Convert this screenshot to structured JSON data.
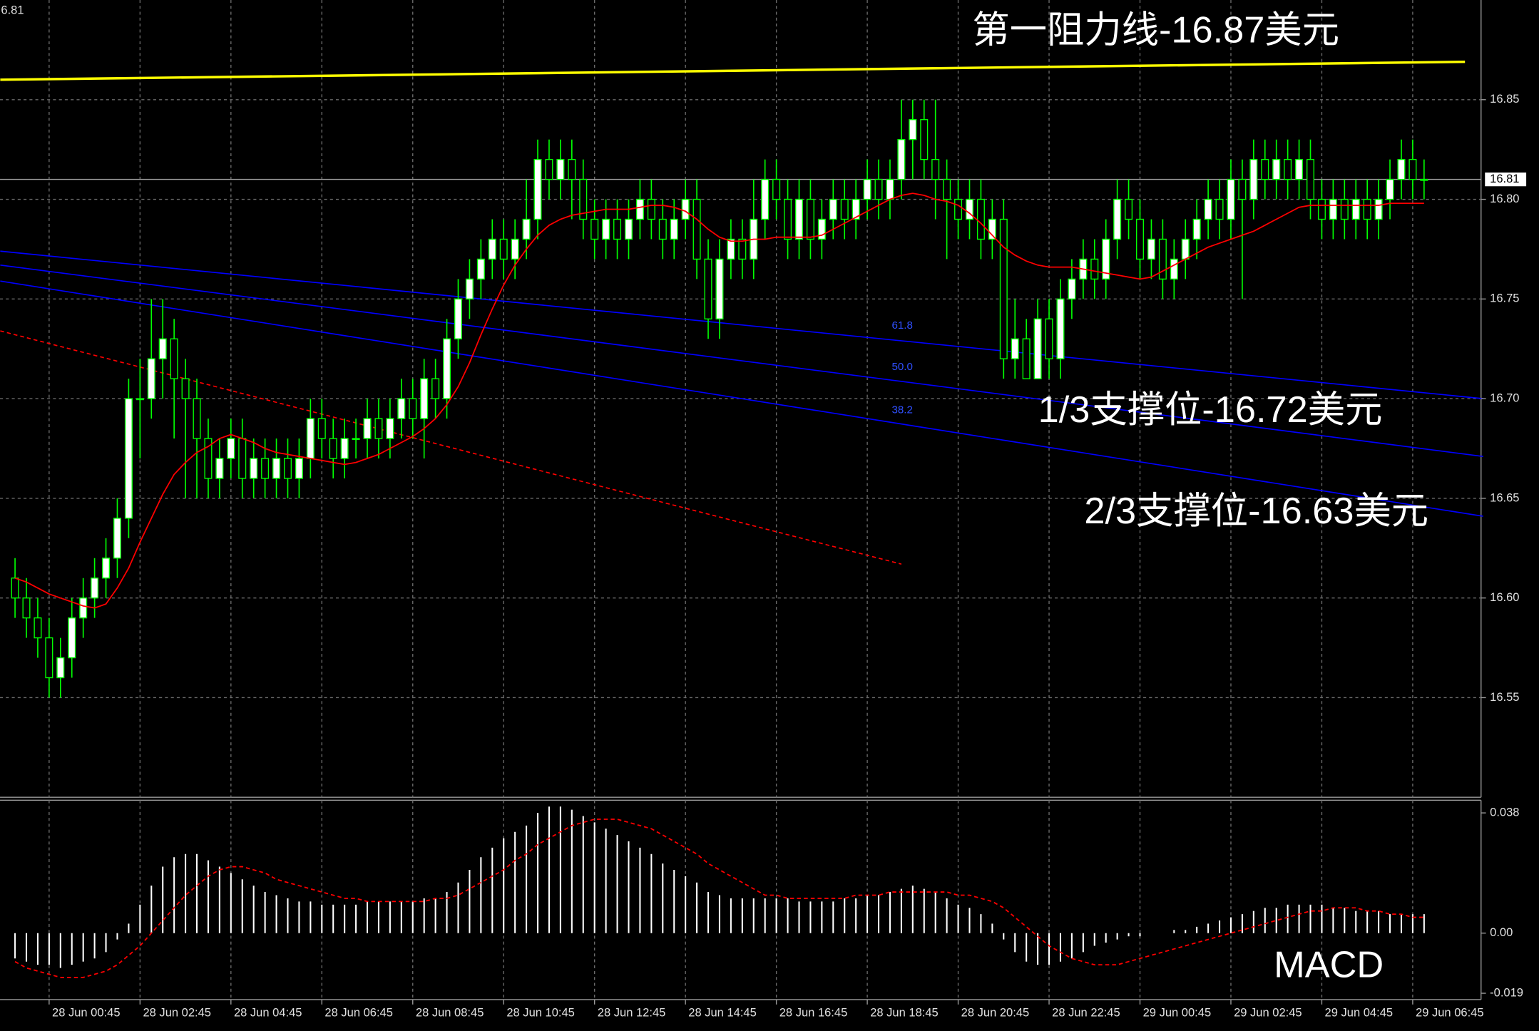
{
  "chart_data": {
    "type": "candlestick",
    "header": "6.81",
    "categories": [
      null,
      null,
      null,
      "28 Jun 00:45",
      null,
      null,
      null,
      null,
      null,
      null,
      null,
      "28 Jun 02:45",
      null,
      null,
      null,
      null,
      null,
      null,
      null,
      "28 Jun 04:45",
      null,
      null,
      null,
      null,
      null,
      null,
      null,
      "28 Jun 06:45",
      null,
      null,
      null,
      null,
      null,
      null,
      null,
      "28 Jun 08:45",
      null,
      null,
      null,
      null,
      null,
      null,
      null,
      "28 Jun 10:45",
      null,
      null,
      null,
      null,
      null,
      null,
      null,
      "28 Jun 12:45",
      null,
      null,
      null,
      null,
      null,
      null,
      null,
      "28 Jun 14:45",
      null,
      null,
      null,
      null,
      null,
      null,
      null,
      "28 Jun 16:45",
      null,
      null,
      null,
      null,
      null,
      null,
      null,
      "28 Jun 18:45",
      null,
      null,
      null,
      null,
      null,
      null,
      null,
      "28 Jun 20:45",
      null,
      null,
      null,
      null,
      null,
      null,
      null,
      "28 Jun 22:45",
      null,
      null,
      null,
      null,
      null,
      null,
      null,
      "29 Jun 00:45",
      null,
      null,
      null,
      null,
      null,
      null,
      null,
      "29 Jun 02:45",
      null,
      null,
      null,
      null,
      null,
      null,
      null,
      "29 Jun 04:45",
      null,
      null,
      null,
      null,
      null,
      null,
      null,
      "29 Jun 06:45",
      null
    ],
    "open": [
      16.61,
      16.6,
      16.59,
      16.58,
      16.56,
      16.57,
      16.59,
      16.6,
      16.61,
      16.62,
      16.64,
      16.7,
      16.7,
      16.72,
      16.73,
      16.71,
      16.7,
      16.68,
      16.66,
      16.67,
      16.68,
      16.66,
      16.67,
      16.66,
      16.67,
      16.66,
      16.67,
      16.69,
      16.68,
      16.67,
      16.68,
      16.68,
      16.69,
      16.68,
      16.69,
      16.7,
      16.69,
      16.71,
      16.7,
      16.73,
      16.75,
      16.76,
      16.77,
      16.78,
      16.77,
      16.78,
      16.79,
      16.82,
      16.81,
      16.82,
      16.81,
      16.79,
      16.78,
      16.79,
      16.78,
      16.79,
      16.8,
      16.79,
      16.78,
      16.79,
      16.8,
      16.77,
      16.74,
      16.77,
      16.78,
      16.77,
      16.79,
      16.81,
      16.8,
      16.78,
      16.8,
      16.78,
      16.79,
      16.8,
      16.79,
      16.8,
      16.81,
      16.8,
      16.81,
      16.83,
      16.84,
      16.82,
      16.81,
      16.8,
      16.79,
      16.8,
      16.78,
      16.79,
      16.72,
      16.73,
      16.71,
      16.74,
      16.72,
      16.75,
      16.76,
      16.77,
      16.76,
      16.78,
      16.8,
      16.79,
      16.77,
      16.78,
      16.76,
      16.77,
      16.78,
      16.79,
      16.8,
      16.79,
      16.81,
      16.8,
      16.82,
      16.81,
      16.82,
      16.81,
      16.82,
      16.8,
      16.79,
      16.8,
      16.79,
      16.8,
      16.79,
      16.8,
      16.81,
      16.82,
      16.81
    ],
    "high": [
      16.62,
      16.61,
      16.6,
      16.59,
      16.58,
      16.6,
      16.61,
      16.62,
      16.63,
      16.65,
      16.71,
      16.72,
      16.75,
      16.75,
      16.74,
      16.72,
      16.71,
      16.69,
      16.68,
      16.69,
      16.69,
      16.68,
      16.68,
      16.68,
      16.68,
      16.68,
      16.7,
      16.7,
      16.69,
      16.69,
      16.69,
      16.7,
      16.7,
      16.7,
      16.71,
      16.71,
      16.72,
      16.72,
      16.74,
      16.76,
      16.77,
      16.78,
      16.79,
      16.79,
      16.79,
      16.81,
      16.83,
      16.83,
      16.83,
      16.83,
      16.82,
      16.8,
      16.8,
      16.8,
      16.8,
      16.81,
      16.81,
      16.8,
      16.8,
      16.81,
      16.81,
      16.78,
      16.78,
      16.79,
      16.79,
      16.81,
      16.82,
      16.82,
      16.81,
      16.81,
      16.81,
      16.8,
      16.81,
      16.81,
      16.81,
      16.82,
      16.82,
      16.82,
      16.85,
      16.85,
      16.85,
      16.85,
      16.82,
      16.81,
      16.81,
      16.81,
      16.8,
      16.8,
      16.75,
      16.74,
      16.75,
      16.75,
      16.76,
      16.77,
      16.78,
      16.78,
      16.79,
      16.81,
      16.81,
      16.8,
      16.79,
      16.79,
      16.78,
      16.79,
      16.8,
      16.81,
      16.81,
      16.82,
      16.82,
      16.83,
      16.83,
      16.83,
      16.83,
      16.83,
      16.83,
      16.81,
      16.81,
      16.81,
      16.81,
      16.81,
      16.81,
      16.82,
      16.83,
      16.83,
      16.82
    ],
    "low": [
      16.59,
      16.58,
      16.57,
      16.55,
      16.55,
      16.56,
      16.58,
      16.59,
      16.6,
      16.61,
      16.63,
      16.67,
      16.69,
      16.7,
      16.68,
      16.65,
      16.65,
      16.65,
      16.65,
      16.66,
      16.65,
      16.65,
      16.65,
      16.65,
      16.65,
      16.65,
      16.66,
      16.67,
      16.66,
      16.66,
      16.67,
      16.67,
      16.67,
      16.67,
      16.68,
      16.68,
      16.67,
      16.69,
      16.69,
      16.72,
      16.74,
      16.75,
      16.76,
      16.76,
      16.76,
      16.77,
      16.78,
      16.8,
      16.8,
      16.79,
      16.78,
      16.77,
      16.77,
      16.77,
      16.77,
      16.78,
      16.78,
      16.77,
      16.77,
      16.78,
      16.76,
      16.73,
      16.73,
      16.76,
      16.76,
      16.76,
      16.78,
      16.79,
      16.77,
      16.77,
      16.77,
      16.77,
      16.78,
      16.78,
      16.78,
      16.79,
      16.79,
      16.79,
      16.8,
      16.81,
      16.81,
      16.79,
      16.77,
      16.78,
      16.78,
      16.77,
      16.77,
      16.71,
      16.71,
      16.71,
      16.71,
      16.71,
      16.71,
      16.74,
      16.75,
      16.75,
      16.75,
      16.77,
      16.78,
      16.76,
      16.76,
      16.75,
      16.75,
      16.76,
      16.77,
      16.78,
      16.78,
      16.78,
      16.75,
      16.79,
      16.8,
      16.8,
      16.8,
      16.8,
      16.79,
      16.78,
      16.78,
      16.78,
      16.78,
      16.78,
      16.78,
      16.79,
      16.8,
      16.8,
      16.8
    ],
    "close": [
      16.6,
      16.59,
      16.58,
      16.56,
      16.57,
      16.59,
      16.6,
      16.61,
      16.62,
      16.64,
      16.7,
      16.7,
      16.72,
      16.73,
      16.71,
      16.7,
      16.68,
      16.66,
      16.67,
      16.68,
      16.66,
      16.67,
      16.66,
      16.67,
      16.66,
      16.67,
      16.69,
      16.68,
      16.67,
      16.68,
      16.68,
      16.69,
      16.68,
      16.69,
      16.7,
      16.69,
      16.71,
      16.7,
      16.73,
      16.75,
      16.76,
      16.77,
      16.78,
      16.77,
      16.78,
      16.79,
      16.82,
      16.81,
      16.82,
      16.81,
      16.79,
      16.78,
      16.79,
      16.78,
      16.79,
      16.8,
      16.79,
      16.78,
      16.79,
      16.8,
      16.77,
      16.74,
      16.77,
      16.78,
      16.77,
      16.79,
      16.81,
      16.8,
      16.78,
      16.8,
      16.78,
      16.79,
      16.8,
      16.79,
      16.8,
      16.81,
      16.8,
      16.81,
      16.83,
      16.84,
      16.82,
      16.81,
      16.8,
      16.79,
      16.8,
      16.78,
      16.79,
      16.72,
      16.73,
      16.71,
      16.74,
      16.72,
      16.75,
      16.76,
      16.77,
      16.76,
      16.78,
      16.8,
      16.79,
      16.77,
      16.78,
      16.76,
      16.77,
      16.78,
      16.79,
      16.8,
      16.79,
      16.81,
      16.8,
      16.82,
      16.81,
      16.82,
      16.81,
      16.82,
      16.8,
      16.79,
      16.8,
      16.79,
      16.8,
      16.79,
      16.8,
      16.81,
      16.82,
      16.81,
      16.81
    ],
    "candle_color": "#00ff00",
    "ma": {
      "color": "#ff0000",
      "values": [
        16.61,
        16.608,
        16.605,
        16.602,
        16.6,
        16.598,
        16.596,
        16.595,
        16.597,
        16.605,
        16.615,
        16.628,
        16.64,
        16.652,
        16.662,
        16.668,
        16.673,
        16.676,
        16.68,
        16.682,
        16.68,
        16.678,
        16.675,
        16.673,
        16.672,
        16.671,
        16.67,
        16.669,
        16.668,
        16.667,
        16.668,
        16.67,
        16.672,
        16.675,
        16.678,
        16.681,
        16.685,
        16.69,
        16.697,
        16.706,
        16.718,
        16.732,
        16.745,
        16.757,
        16.767,
        16.775,
        16.782,
        16.787,
        16.79,
        16.792,
        16.793,
        16.794,
        16.795,
        16.795,
        16.795,
        16.796,
        16.797,
        16.797,
        16.796,
        16.794,
        16.79,
        16.785,
        16.781,
        16.779,
        16.779,
        16.78,
        16.78,
        16.781,
        16.781,
        16.781,
        16.781,
        16.782,
        16.785,
        16.788,
        16.791,
        16.794,
        16.797,
        16.8,
        16.802,
        16.803,
        16.802,
        16.8,
        16.799,
        16.797,
        16.793,
        16.788,
        16.782,
        16.776,
        16.772,
        16.769,
        16.767,
        16.766,
        16.766,
        16.766,
        16.765,
        16.764,
        16.763,
        16.762,
        16.761,
        16.76,
        16.761,
        16.764,
        16.767,
        16.77,
        16.773,
        16.776,
        16.778,
        16.78,
        16.782,
        16.784,
        16.787,
        16.79,
        16.793,
        16.796,
        16.797,
        16.797,
        16.797,
        16.797,
        16.797,
        16.797,
        16.797,
        16.798,
        16.798,
        16.798,
        16.798
      ]
    },
    "ylim": [
      16.5,
      16.9
    ],
    "yticks": [
      16.55,
      {
        "value": 16.6,
        "label": "16.60"
      },
      16.65,
      {
        "value": 16.7,
        "label": "16.70"
      },
      16.75,
      {
        "value": 16.8,
        "label": "16.80"
      },
      16.85
    ],
    "grid": true,
    "last_price": 16.81,
    "lines": [
      {
        "color": "#ffff00",
        "dashed": false,
        "x": [
          -1.3,
          127.6
        ],
        "values": [
          16.86,
          16.869
        ]
      },
      {
        "color": "#0000ff",
        "dashed": false,
        "x": [
          -1.3,
          129.2
        ],
        "values": [
          16.774,
          16.7
        ]
      },
      {
        "color": "#0000ff",
        "dashed": false,
        "x": [
          -1.3,
          129.2
        ],
        "values": [
          16.767,
          16.671
        ]
      },
      {
        "color": "#0000ff",
        "dashed": false,
        "x": [
          -1.3,
          129.2
        ],
        "values": [
          16.759,
          16.641
        ]
      },
      {
        "color": "#ff0000",
        "dashed": true,
        "x": [
          -1.3,
          78
        ],
        "values": [
          16.734,
          16.617
        ]
      }
    ],
    "fib_labels": [
      "61.8",
      "50.0",
      "38.2"
    ],
    "annotations": [
      "第一阻力线-16.87美元",
      "1/3支撑位-16.72美元",
      "2/3支撑位-16.63美元"
    ],
    "indicator": {
      "type": "macd",
      "label": "MACD",
      "hist_color": "#ffffff",
      "signal_color": "#ff0000",
      "ylim": [
        -0.021,
        0.042
      ],
      "yticks": [
        0.038,
        {
          "value": 0,
          "label": "0.00"
        },
        -0.019
      ],
      "histogram": [
        -0.008,
        -0.009,
        -0.01,
        -0.01,
        -0.011,
        -0.01,
        -0.009,
        -0.008,
        -0.006,
        -0.002,
        0.003,
        0.009,
        0.015,
        0.021,
        0.024,
        0.025,
        0.025,
        0.023,
        0.021,
        0.019,
        0.017,
        0.015,
        0.013,
        0.012,
        0.011,
        0.01,
        0.01,
        0.009,
        0.009,
        0.009,
        0.009,
        0.01,
        0.01,
        0.01,
        0.01,
        0.01,
        0.011,
        0.011,
        0.013,
        0.016,
        0.02,
        0.024,
        0.027,
        0.03,
        0.032,
        0.034,
        0.038,
        0.04,
        0.04,
        0.039,
        0.037,
        0.035,
        0.033,
        0.031,
        0.029,
        0.027,
        0.025,
        0.022,
        0.02,
        0.018,
        0.016,
        0.013,
        0.012,
        0.011,
        0.011,
        0.011,
        0.011,
        0.011,
        0.011,
        0.01,
        0.01,
        0.01,
        0.01,
        0.011,
        0.011,
        0.012,
        0.012,
        0.013,
        0.014,
        0.015,
        0.014,
        0.013,
        0.011,
        0.009,
        0.008,
        0.006,
        0.003,
        -0.002,
        -0.006,
        -0.009,
        -0.01,
        -0.01,
        -0.009,
        -0.008,
        -0.006,
        -0.004,
        -0.003,
        -0.002,
        -0.001,
        -0.001,
        0,
        0,
        0.001,
        0.001,
        0.002,
        0.003,
        0.004,
        0.005,
        0.006,
        0.007,
        0.008,
        0.008,
        0.009,
        0.009,
        0.009,
        0.009,
        0.008,
        0.008,
        0.007,
        0.007,
        0.007,
        0.006,
        0.006,
        0.006,
        0.006
      ],
      "signal": [
        -0.009,
        -0.011,
        -0.012,
        -0.013,
        -0.014,
        -0.014,
        -0.014,
        -0.013,
        -0.012,
        -0.01,
        -0.007,
        -0.004,
        0,
        0.004,
        0.008,
        0.012,
        0.015,
        0.018,
        0.02,
        0.021,
        0.021,
        0.02,
        0.019,
        0.017,
        0.016,
        0.015,
        0.014,
        0.013,
        0.012,
        0.011,
        0.011,
        0.01,
        0.01,
        0.01,
        0.01,
        0.01,
        0.01,
        0.011,
        0.011,
        0.012,
        0.014,
        0.016,
        0.018,
        0.02,
        0.023,
        0.025,
        0.028,
        0.03,
        0.032,
        0.034,
        0.035,
        0.036,
        0.036,
        0.036,
        0.035,
        0.034,
        0.033,
        0.031,
        0.029,
        0.027,
        0.025,
        0.022,
        0.02,
        0.018,
        0.016,
        0.014,
        0.012,
        0.012,
        0.011,
        0.011,
        0.011,
        0.011,
        0.011,
        0.011,
        0.012,
        0.012,
        0.012,
        0.013,
        0.013,
        0.013,
        0.013,
        0.013,
        0.013,
        0.012,
        0.012,
        0.011,
        0.01,
        0.008,
        0.005,
        0.002,
        -0.001,
        -0.004,
        -0.006,
        -0.008,
        -0.009,
        -0.01,
        -0.01,
        -0.01,
        -0.009,
        -0.008,
        -0.007,
        -0.006,
        -0.005,
        -0.004,
        -0.003,
        -0.002,
        -0.001,
        0,
        0.001,
        0.002,
        0.003,
        0.004,
        0.005,
        0.006,
        0.007,
        0.007,
        0.008,
        0.008,
        0.008,
        0.007,
        0.007,
        0.006,
        0.006,
        0.005,
        0.005
      ]
    }
  }
}
